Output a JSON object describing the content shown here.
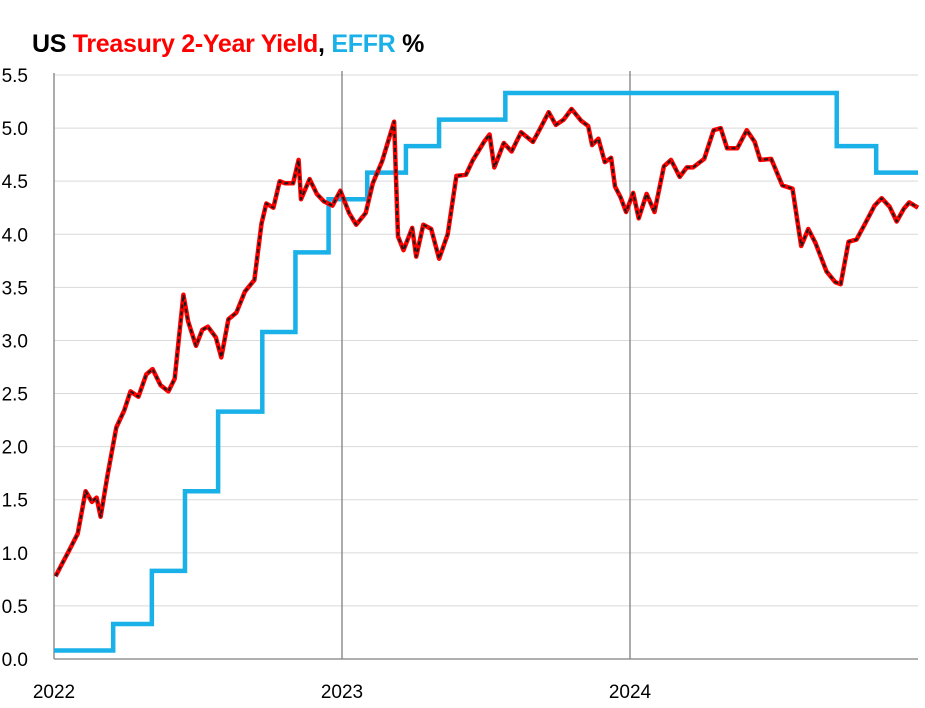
{
  "chart_data": {
    "type": "line",
    "title": {
      "parts": [
        {
          "text": "US ",
          "color": "#000000"
        },
        {
          "text": "Treasury 2-Year Yield",
          "color": "#ff0000"
        },
        {
          "text": ", ",
          "color": "#000000"
        },
        {
          "text": "EFFR",
          "color": "#1ab0e8"
        },
        {
          "text": " %",
          "color": "#000000"
        }
      ]
    },
    "xlabel": "",
    "ylabel": "",
    "x_range": [
      "2022-01-01",
      "2024-12-31"
    ],
    "x_ticks": [
      {
        "label": "2022",
        "date": "2022-01-01"
      },
      {
        "label": "2023",
        "date": "2023-01-01"
      },
      {
        "label": "2024",
        "date": "2024-01-01"
      }
    ],
    "ylim": [
      0,
      5.5
    ],
    "y_ticks": [
      "0.0",
      "0.5",
      "1.0",
      "1.5",
      "2.0",
      "2.5",
      "3.0",
      "3.5",
      "4.0",
      "4.5",
      "5.0",
      "5.5"
    ],
    "grid": "horizontal gridlines, vertical lines at year boundaries",
    "legend": "none (series named in title)",
    "colors": {
      "yield_line": "#ff0000",
      "yield_dash": "#1a1a1a",
      "effr_line": "#1ab0e8",
      "grid": "#d9d9d9",
      "year_line": "#7f7f7f"
    },
    "series": [
      {
        "name": "Treasury 2-Year Yield",
        "style": "red line with black dashed overlay",
        "points": [
          [
            "2022-01-03",
            0.78
          ],
          [
            "2022-01-10",
            0.88
          ],
          [
            "2022-01-20",
            1.02
          ],
          [
            "2022-01-31",
            1.18
          ],
          [
            "2022-02-10",
            1.58
          ],
          [
            "2022-02-18",
            1.48
          ],
          [
            "2022-02-24",
            1.52
          ],
          [
            "2022-03-01",
            1.34
          ],
          [
            "2022-03-10",
            1.74
          ],
          [
            "2022-03-21",
            2.18
          ],
          [
            "2022-03-31",
            2.34
          ],
          [
            "2022-04-08",
            2.52
          ],
          [
            "2022-04-18",
            2.47
          ],
          [
            "2022-04-28",
            2.68
          ],
          [
            "2022-05-06",
            2.73
          ],
          [
            "2022-05-16",
            2.58
          ],
          [
            "2022-05-26",
            2.52
          ],
          [
            "2022-06-03",
            2.64
          ],
          [
            "2022-06-14",
            3.43
          ],
          [
            "2022-06-20",
            3.18
          ],
          [
            "2022-06-30",
            2.95
          ],
          [
            "2022-07-08",
            3.1
          ],
          [
            "2022-07-15",
            3.13
          ],
          [
            "2022-07-25",
            3.03
          ],
          [
            "2022-08-01",
            2.84
          ],
          [
            "2022-08-10",
            3.2
          ],
          [
            "2022-08-20",
            3.26
          ],
          [
            "2022-08-31",
            3.46
          ],
          [
            "2022-09-12",
            3.57
          ],
          [
            "2022-09-21",
            4.1
          ],
          [
            "2022-09-27",
            4.29
          ],
          [
            "2022-10-06",
            4.25
          ],
          [
            "2022-10-14",
            4.5
          ],
          [
            "2022-10-21",
            4.48
          ],
          [
            "2022-10-31",
            4.48
          ],
          [
            "2022-11-07",
            4.7
          ],
          [
            "2022-11-10",
            4.33
          ],
          [
            "2022-11-21",
            4.52
          ],
          [
            "2022-11-30",
            4.38
          ],
          [
            "2022-12-09",
            4.31
          ],
          [
            "2022-12-20",
            4.27
          ],
          [
            "2022-12-30",
            4.41
          ],
          [
            "2023-01-10",
            4.2
          ],
          [
            "2023-01-19",
            4.09
          ],
          [
            "2023-01-31",
            4.2
          ],
          [
            "2023-02-09",
            4.48
          ],
          [
            "2023-02-21",
            4.69
          ],
          [
            "2023-03-01",
            4.89
          ],
          [
            "2023-03-08",
            5.06
          ],
          [
            "2023-03-13",
            3.98
          ],
          [
            "2023-03-20",
            3.85
          ],
          [
            "2023-03-31",
            4.06
          ],
          [
            "2023-04-05",
            3.79
          ],
          [
            "2023-04-14",
            4.09
          ],
          [
            "2023-04-24",
            4.05
          ],
          [
            "2023-05-04",
            3.77
          ],
          [
            "2023-05-15",
            4.0
          ],
          [
            "2023-05-26",
            4.55
          ],
          [
            "2023-06-07",
            4.56
          ],
          [
            "2023-06-16",
            4.7
          ],
          [
            "2023-06-30",
            4.87
          ],
          [
            "2023-07-07",
            4.94
          ],
          [
            "2023-07-13",
            4.63
          ],
          [
            "2023-07-25",
            4.86
          ],
          [
            "2023-08-04",
            4.78
          ],
          [
            "2023-08-16",
            4.96
          ],
          [
            "2023-08-31",
            4.87
          ],
          [
            "2023-09-08",
            4.98
          ],
          [
            "2023-09-20",
            5.15
          ],
          [
            "2023-09-29",
            5.03
          ],
          [
            "2023-10-09",
            5.08
          ],
          [
            "2023-10-19",
            5.18
          ],
          [
            "2023-10-31",
            5.07
          ],
          [
            "2023-11-09",
            5.02
          ],
          [
            "2023-11-14",
            4.84
          ],
          [
            "2023-11-22",
            4.9
          ],
          [
            "2023-11-30",
            4.68
          ],
          [
            "2023-12-08",
            4.72
          ],
          [
            "2023-12-13",
            4.45
          ],
          [
            "2023-12-20",
            4.35
          ],
          [
            "2023-12-27",
            4.21
          ],
          [
            "2024-01-05",
            4.39
          ],
          [
            "2024-01-12",
            4.15
          ],
          [
            "2024-01-22",
            4.38
          ],
          [
            "2024-02-01",
            4.21
          ],
          [
            "2024-02-13",
            4.64
          ],
          [
            "2024-02-22",
            4.7
          ],
          [
            "2024-03-04",
            4.54
          ],
          [
            "2024-03-13",
            4.63
          ],
          [
            "2024-03-21",
            4.63
          ],
          [
            "2024-04-04",
            4.71
          ],
          [
            "2024-04-16",
            4.98
          ],
          [
            "2024-04-25",
            5.0
          ],
          [
            "2024-05-03",
            4.81
          ],
          [
            "2024-05-16",
            4.81
          ],
          [
            "2024-05-28",
            4.98
          ],
          [
            "2024-06-07",
            4.87
          ],
          [
            "2024-06-14",
            4.7
          ],
          [
            "2024-06-28",
            4.71
          ],
          [
            "2024-07-12",
            4.46
          ],
          [
            "2024-07-25",
            4.43
          ],
          [
            "2024-08-05",
            3.89
          ],
          [
            "2024-08-14",
            4.05
          ],
          [
            "2024-08-23",
            3.92
          ],
          [
            "2024-09-06",
            3.65
          ],
          [
            "2024-09-17",
            3.55
          ],
          [
            "2024-09-24",
            3.53
          ],
          [
            "2024-10-04",
            3.93
          ],
          [
            "2024-10-14",
            3.95
          ],
          [
            "2024-10-25",
            4.1
          ],
          [
            "2024-11-06",
            4.27
          ],
          [
            "2024-11-15",
            4.34
          ],
          [
            "2024-11-25",
            4.26
          ],
          [
            "2024-12-04",
            4.12
          ],
          [
            "2024-12-13",
            4.24
          ],
          [
            "2024-12-20",
            4.3
          ],
          [
            "2024-12-31",
            4.25
          ]
        ]
      },
      {
        "name": "EFFR",
        "style": "step",
        "points": [
          [
            "2022-01-01",
            0.08
          ],
          [
            "2022-03-17",
            0.33
          ],
          [
            "2022-05-05",
            0.83
          ],
          [
            "2022-06-16",
            1.58
          ],
          [
            "2022-07-28",
            2.33
          ],
          [
            "2022-09-22",
            3.08
          ],
          [
            "2022-11-03",
            3.83
          ],
          [
            "2022-12-15",
            4.33
          ],
          [
            "2023-02-02",
            4.58
          ],
          [
            "2023-03-23",
            4.83
          ],
          [
            "2023-05-04",
            5.08
          ],
          [
            "2023-07-27",
            5.33
          ],
          [
            "2024-09-19",
            4.83
          ],
          [
            "2024-11-08",
            4.58
          ],
          [
            "2024-12-31",
            4.58
          ]
        ]
      }
    ]
  }
}
